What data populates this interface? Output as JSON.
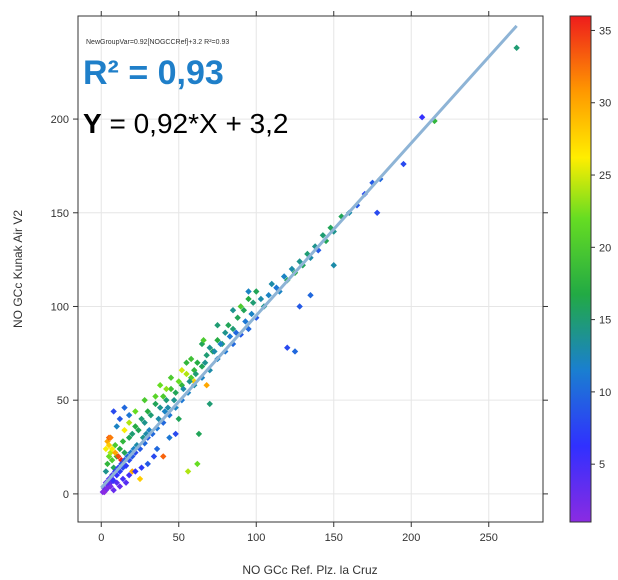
{
  "chart_data": {
    "type": "scatter",
    "xlabel": "NO GCc Ref. Plz. la Cruz",
    "ylabel": "NO GCc Kunak Air V2",
    "xlim": [
      -15,
      285
    ],
    "ylim": [
      -15,
      255
    ],
    "xticks": [
      "0",
      "50",
      "100",
      "150",
      "200",
      "250"
    ],
    "yticks": [
      "0",
      "50",
      "100",
      "150",
      "200"
    ],
    "annotation_small": "NewGroupVar=0.92[NOGCCRef]+3.2 R²=0.93",
    "annotation_r2": "R² = 0,93",
    "annotation_eq_y": "Y",
    "annotation_eq_rest": " = 0,92*X + 3,2",
    "fit": {
      "slope": 0.92,
      "intercept": 3.2,
      "color": "#8eb4d6"
    },
    "colorbar": {
      "min": 1,
      "max": 36,
      "ticks": [
        "5",
        "10",
        "15",
        "20",
        "25",
        "30",
        "35"
      ]
    },
    "points": [
      [
        1,
        1,
        2
      ],
      [
        2,
        3,
        3
      ],
      [
        3,
        2,
        4
      ],
      [
        4,
        5,
        3
      ],
      [
        5,
        4,
        5
      ],
      [
        6,
        6,
        4
      ],
      [
        7,
        8,
        5
      ],
      [
        8,
        7,
        6
      ],
      [
        10,
        10,
        6
      ],
      [
        12,
        12,
        7
      ],
      [
        14,
        14,
        8
      ],
      [
        16,
        15,
        7
      ],
      [
        18,
        18,
        8
      ],
      [
        20,
        20,
        9
      ],
      [
        22,
        22,
        8
      ],
      [
        25,
        24,
        9
      ],
      [
        28,
        27,
        10
      ],
      [
        30,
        30,
        9
      ],
      [
        33,
        32,
        10
      ],
      [
        36,
        35,
        11
      ],
      [
        40,
        38,
        10
      ],
      [
        44,
        42,
        11
      ],
      [
        48,
        46,
        12
      ],
      [
        52,
        50,
        11
      ],
      [
        56,
        54,
        12
      ],
      [
        60,
        58,
        13
      ],
      [
        65,
        62,
        12
      ],
      [
        70,
        66,
        13
      ],
      [
        75,
        72,
        12
      ],
      [
        80,
        76,
        11
      ],
      [
        85,
        80,
        10
      ],
      [
        90,
        85,
        9
      ],
      [
        95,
        88,
        10
      ],
      [
        100,
        94,
        9
      ],
      [
        3,
        12,
        14
      ],
      [
        4,
        16,
        18
      ],
      [
        5,
        20,
        22
      ],
      [
        3,
        24,
        26
      ],
      [
        4,
        28,
        30
      ],
      [
        5,
        30,
        33
      ],
      [
        6,
        22,
        24
      ],
      [
        7,
        18,
        20
      ],
      [
        8,
        14,
        16
      ],
      [
        9,
        26,
        20
      ],
      [
        10,
        20,
        18
      ],
      [
        12,
        24,
        17
      ],
      [
        14,
        28,
        18
      ],
      [
        15,
        22,
        16
      ],
      [
        18,
        30,
        16
      ],
      [
        20,
        32,
        15
      ],
      [
        22,
        36,
        17
      ],
      [
        24,
        34,
        16
      ],
      [
        26,
        40,
        15
      ],
      [
        28,
        38,
        14
      ],
      [
        30,
        44,
        17
      ],
      [
        32,
        42,
        15
      ],
      [
        35,
        48,
        16
      ],
      [
        38,
        46,
        14
      ],
      [
        40,
        52,
        20
      ],
      [
        42,
        50,
        15
      ],
      [
        45,
        56,
        19
      ],
      [
        48,
        54,
        16
      ],
      [
        50,
        60,
        22
      ],
      [
        52,
        58,
        18
      ],
      [
        55,
        64,
        24
      ],
      [
        58,
        62,
        20
      ],
      [
        60,
        66,
        18
      ],
      [
        62,
        70,
        17
      ],
      [
        65,
        68,
        16
      ],
      [
        68,
        74,
        15
      ],
      [
        70,
        78,
        14
      ],
      [
        72,
        76,
        16
      ],
      [
        75,
        82,
        17
      ],
      [
        78,
        80,
        15
      ],
      [
        80,
        86,
        14
      ],
      [
        82,
        90,
        16
      ],
      [
        85,
        88,
        15
      ],
      [
        88,
        94,
        16
      ],
      [
        90,
        100,
        20
      ],
      [
        92,
        98,
        16
      ],
      [
        95,
        104,
        17
      ],
      [
        98,
        102,
        15
      ],
      [
        100,
        108,
        16
      ],
      [
        105,
        100,
        14
      ],
      [
        110,
        112,
        13
      ],
      [
        115,
        108,
        12
      ],
      [
        120,
        114,
        16
      ],
      [
        125,
        118,
        17
      ],
      [
        130,
        122,
        16
      ],
      [
        135,
        126,
        13
      ],
      [
        140,
        130,
        9
      ],
      [
        145,
        135,
        16
      ],
      [
        150,
        140,
        14
      ],
      [
        155,
        148,
        16
      ],
      [
        160,
        150,
        13
      ],
      [
        165,
        154,
        9
      ],
      [
        170,
        160,
        8
      ],
      [
        175,
        166,
        9
      ],
      [
        178,
        150,
        8
      ],
      [
        180,
        168,
        10
      ],
      [
        195,
        176,
        8
      ],
      [
        207,
        201,
        6
      ],
      [
        215,
        199,
        18
      ],
      [
        268,
        238,
        15
      ],
      [
        8,
        44,
        8
      ],
      [
        12,
        40,
        9
      ],
      [
        15,
        46,
        10
      ],
      [
        18,
        42,
        11
      ],
      [
        10,
        36,
        12
      ],
      [
        6,
        30,
        32
      ],
      [
        5,
        26,
        28
      ],
      [
        7,
        24,
        26
      ],
      [
        9,
        22,
        30
      ],
      [
        11,
        20,
        34
      ],
      [
        13,
        18,
        36
      ],
      [
        20,
        12,
        30
      ],
      [
        25,
        8,
        28
      ],
      [
        40,
        20,
        33
      ],
      [
        56,
        12,
        24
      ],
      [
        62,
        16,
        22
      ],
      [
        63,
        32,
        16
      ],
      [
        70,
        48,
        15
      ],
      [
        120,
        78,
        8
      ],
      [
        125,
        76,
        10
      ],
      [
        150,
        122,
        13
      ],
      [
        128,
        100,
        9
      ],
      [
        135,
        106,
        10
      ],
      [
        68,
        58,
        30
      ],
      [
        60,
        60,
        28
      ],
      [
        50,
        40,
        16
      ],
      [
        36,
        24,
        10
      ],
      [
        44,
        30,
        11
      ],
      [
        48,
        32,
        8
      ],
      [
        30,
        16,
        9
      ],
      [
        34,
        20,
        8
      ],
      [
        26,
        14,
        7
      ],
      [
        22,
        12,
        6
      ],
      [
        18,
        10,
        5
      ],
      [
        16,
        6,
        4
      ],
      [
        14,
        8,
        5
      ],
      [
        12,
        4,
        3
      ],
      [
        10,
        6,
        4
      ],
      [
        8,
        2,
        3
      ],
      [
        6,
        4,
        2
      ],
      [
        4,
        3,
        2
      ],
      [
        2,
        1,
        1
      ],
      [
        3,
        6,
        3
      ],
      [
        5,
        8,
        4
      ],
      [
        7,
        10,
        5
      ],
      [
        9,
        12,
        6
      ],
      [
        11,
        14,
        7
      ],
      [
        13,
        16,
        8
      ],
      [
        15,
        18,
        9
      ],
      [
        17,
        20,
        10
      ],
      [
        19,
        22,
        11
      ],
      [
        21,
        24,
        12
      ],
      [
        23,
        26,
        13
      ],
      [
        27,
        30,
        14
      ],
      [
        29,
        32,
        13
      ],
      [
        31,
        34,
        12
      ],
      [
        37,
        40,
        13
      ],
      [
        41,
        44,
        12
      ],
      [
        43,
        46,
        13
      ],
      [
        47,
        50,
        14
      ],
      [
        53,
        56,
        13
      ],
      [
        57,
        60,
        14
      ],
      [
        61,
        64,
        15
      ],
      [
        67,
        70,
        14
      ],
      [
        73,
        76,
        13
      ],
      [
        77,
        80,
        12
      ],
      [
        83,
        84,
        11
      ],
      [
        87,
        86,
        10
      ],
      [
        93,
        92,
        11
      ],
      [
        97,
        96,
        12
      ],
      [
        103,
        104,
        13
      ],
      [
        108,
        106,
        12
      ],
      [
        113,
        110,
        11
      ],
      [
        118,
        116,
        12
      ],
      [
        123,
        120,
        13
      ],
      [
        128,
        124,
        14
      ],
      [
        133,
        128,
        15
      ],
      [
        138,
        132,
        14
      ],
      [
        143,
        138,
        15
      ],
      [
        148,
        142,
        16
      ],
      [
        38,
        58,
        22
      ],
      [
        45,
        62,
        20
      ],
      [
        55,
        70,
        18
      ],
      [
        65,
        80,
        16
      ],
      [
        75,
        90,
        15
      ],
      [
        85,
        98,
        14
      ],
      [
        95,
        108,
        12
      ],
      [
        28,
        50,
        20
      ],
      [
        22,
        44,
        22
      ],
      [
        18,
        38,
        24
      ],
      [
        15,
        34,
        26
      ],
      [
        35,
        52,
        21
      ],
      [
        42,
        56,
        23
      ],
      [
        52,
        66,
        25
      ],
      [
        58,
        72,
        19
      ],
      [
        66,
        82,
        20
      ]
    ]
  }
}
